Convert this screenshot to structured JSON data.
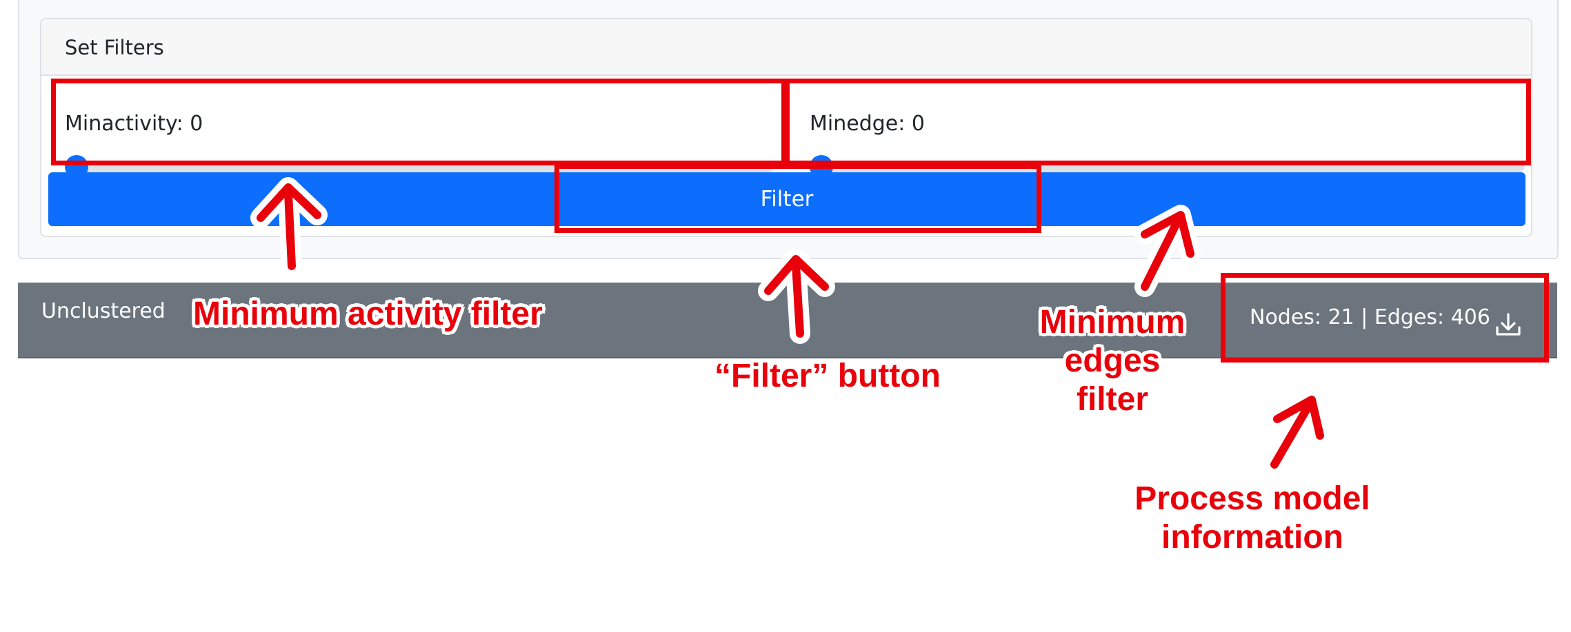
{
  "filters_card": {
    "title": "Set Filters",
    "minactivity": {
      "label": "Minactivity: 0",
      "value": 0
    },
    "minedge": {
      "label": "Minedge: 0",
      "value": 0
    },
    "filter_button": "Filter"
  },
  "status_bar": {
    "left_text": "Unclustered",
    "model_info": "Nodes: 21 | Edges: 406",
    "download_icon": "download-icon"
  },
  "annotations": {
    "min_activity": "Minimum activity filter",
    "filter_button": "“Filter” button",
    "min_edges_line1": "Minimum",
    "min_edges_line2": "edges",
    "min_edges_line3": "filter",
    "process_info_line1": "Process model",
    "process_info_line2": "information"
  },
  "colors": {
    "primary": "#0d6efd",
    "status_bar": "#6c757d",
    "annotation": "#e8000b"
  }
}
